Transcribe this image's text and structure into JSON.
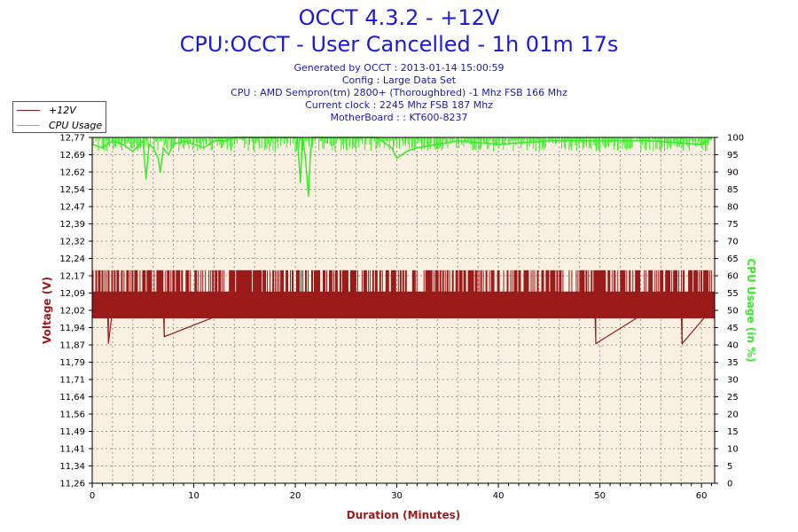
{
  "header": {
    "title": "OCCT 4.3.2 - +12V",
    "subtitle": "CPU:OCCT - User Cancelled - 1h 01m 17s",
    "info_lines": [
      "Generated by OCCT : 2013-01-14 15:00:59",
      "Config : Large Data Set",
      "CPU : AMD Sempron(tm) 2800+ (Thoroughbred) -1 Mhz FSB 166 Mhz",
      "Current clock : 2245 Mhz FSB 187 Mhz",
      "MotherBoard : : KT600-8237"
    ]
  },
  "legend": [
    {
      "label": "+12V",
      "color": "#8b1a1a"
    },
    {
      "label": "CPU Usage",
      "color": "#33ee22"
    }
  ],
  "chart_data": {
    "type": "line",
    "xlabel": "Duration (Minutes)",
    "ylabel_left": "Voltage (V)",
    "ylabel_right": "CPU Usage (in %)",
    "xlim": [
      0,
      61.3
    ],
    "ylim_left": [
      11.26,
      12.77
    ],
    "ylim_right": [
      0,
      100
    ],
    "x_ticks": [
      "0",
      "10",
      "20",
      "30",
      "40",
      "50",
      "60"
    ],
    "x_tick_values": [
      0,
      10,
      20,
      30,
      40,
      50,
      60
    ],
    "y_left_ticks": [
      "11,26",
      "11,34",
      "11,41",
      "11,49",
      "11,56",
      "11,64",
      "11,71",
      "11,79",
      "11,87",
      "11,94",
      "12,02",
      "12,09",
      "12,17",
      "12,24",
      "12,32",
      "12,39",
      "12,47",
      "12,54",
      "12,62",
      "12,69",
      "12,77"
    ],
    "y_right_ticks": [
      "0",
      "5",
      "10",
      "15",
      "20",
      "25",
      "30",
      "35",
      "40",
      "45",
      "50",
      "55",
      "60",
      "65",
      "70",
      "75",
      "80",
      "85",
      "90",
      "95",
      "100"
    ],
    "grid": true,
    "legend_position": "top-left",
    "colors": {
      "background": "#faf0e1",
      "voltage": "#9b1b1b",
      "cpu": "#33ee22",
      "left_axis_label": "#9b1b1b",
      "right_axis_label": "#33ee22"
    },
    "series": [
      {
        "name": "+12V",
        "axis": "left",
        "baseline": 12.02,
        "band": [
          11.98,
          12.19
        ],
        "x": [
          0,
          1.5,
          1.6,
          2.0,
          7.0,
          7.1,
          14.0,
          16.0,
          30.0,
          35.0,
          40.0,
          47.0,
          49.5,
          49.6,
          55.0,
          58.0,
          58.1,
          61.0
        ],
        "y": [
          12.02,
          12.02,
          11.87,
          12.02,
          12.02,
          11.9,
          12.02,
          12.02,
          12.02,
          12.02,
          12.02,
          12.02,
          12.02,
          11.87,
          12.02,
          12.02,
          11.87,
          12.02
        ]
      },
      {
        "name": "CPU Usage",
        "axis": "right",
        "x": [
          0,
          1,
          2,
          3,
          4,
          5,
          5.3,
          5.6,
          6,
          6.5,
          6.7,
          7,
          7.5,
          8,
          9,
          10,
          11,
          12,
          13,
          14,
          15,
          17,
          19,
          20.2,
          20.5,
          20.7,
          21,
          21.3,
          21.5,
          21.7,
          22,
          25,
          28,
          29.5,
          30,
          31,
          32,
          34,
          36,
          40,
          45,
          50,
          55,
          60,
          61
        ],
        "y": [
          98,
          97,
          99,
          98,
          96,
          99,
          88,
          98,
          97,
          94,
          90,
          97,
          95,
          98,
          99,
          98,
          97,
          99,
          99,
          100,
          100,
          100,
          100,
          100,
          87,
          100,
          94,
          83,
          96,
          100,
          100,
          100,
          100,
          97,
          94,
          96,
          97,
          98,
          99,
          98,
          99,
          99,
          99,
          98,
          100
        ]
      }
    ]
  }
}
